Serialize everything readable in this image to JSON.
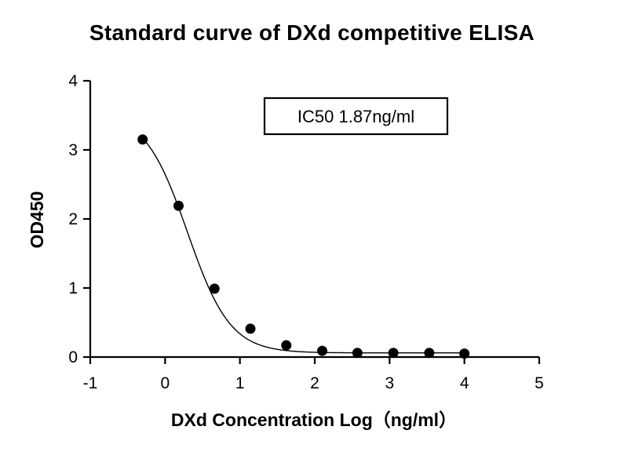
{
  "chart_data": {
    "type": "scatter",
    "title": "Standard curve of DXd competitive ELISA",
    "xlabel": "DXd Concentration Log（ng/ml）",
    "ylabel": "OD450",
    "xlim": [
      -1,
      5
    ],
    "ylim": [
      0,
      4
    ],
    "x_ticks": [
      -1,
      0,
      1,
      2,
      3,
      4,
      5
    ],
    "y_ticks": [
      0,
      1,
      2,
      3,
      4
    ],
    "x_tick_labels": [
      "-1",
      "0",
      "1",
      "2",
      "3",
      "4",
      "5"
    ],
    "y_tick_labels": [
      "0",
      "1",
      "2",
      "3",
      "4"
    ],
    "grid": false,
    "series": [
      {
        "x": [
          -0.3,
          0.18,
          0.66,
          1.14,
          1.62,
          2.1,
          2.57,
          3.05,
          3.53,
          4.0
        ],
        "y": [
          3.15,
          2.19,
          0.99,
          0.41,
          0.17,
          0.09,
          0.06,
          0.06,
          0.06,
          0.05
        ],
        "marker": "circle",
        "color": "#000000",
        "fit": "4-parameter logistic"
      }
    ],
    "annotation": "IC50 1.87ng/ml"
  }
}
